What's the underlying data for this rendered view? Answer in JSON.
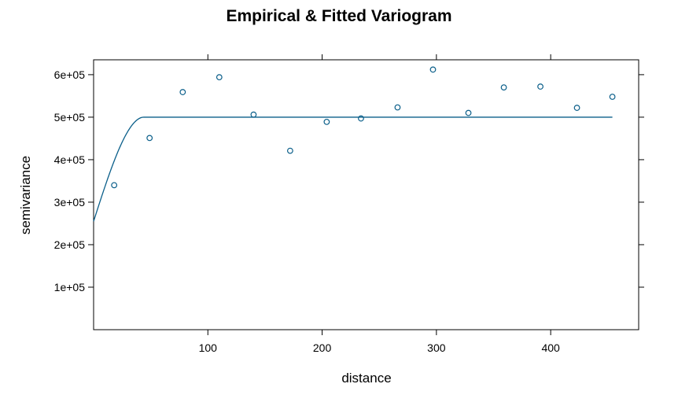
{
  "colors": {
    "series": "#0b5f8a"
  },
  "chart_data": {
    "type": "scatter",
    "title": "Empirical & Fitted Variogram",
    "xlabel": "distance",
    "ylabel": "semivariance",
    "xlim": [
      0,
      477
    ],
    "ylim": [
      0,
      635000
    ],
    "xticks": [
      {
        "value": 100,
        "label": "100"
      },
      {
        "value": 200,
        "label": "200"
      },
      {
        "value": 300,
        "label": "300"
      },
      {
        "value": 400,
        "label": "400"
      }
    ],
    "yticks": [
      {
        "value": 100000,
        "label": "1e+05"
      },
      {
        "value": 200000,
        "label": "2e+05"
      },
      {
        "value": 300000,
        "label": "3e+05"
      },
      {
        "value": 400000,
        "label": "4e+05"
      },
      {
        "value": 500000,
        "label": "5e+05"
      },
      {
        "value": 600000,
        "label": "6e+05"
      }
    ],
    "points": [
      {
        "x": 18,
        "y": 340000
      },
      {
        "x": 49,
        "y": 451000
      },
      {
        "x": 78,
        "y": 559000
      },
      {
        "x": 110,
        "y": 594000
      },
      {
        "x": 140,
        "y": 506000
      },
      {
        "x": 172,
        "y": 421000
      },
      {
        "x": 204,
        "y": 489000
      },
      {
        "x": 234,
        "y": 497000
      },
      {
        "x": 266,
        "y": 523000
      },
      {
        "x": 297,
        "y": 612000
      },
      {
        "x": 328,
        "y": 510000
      },
      {
        "x": 359,
        "y": 570000
      },
      {
        "x": 391,
        "y": 572000
      },
      {
        "x": 423,
        "y": 522000
      },
      {
        "x": 454,
        "y": 548000
      }
    ],
    "fitted_model": {
      "type": "spherical",
      "nugget": 255000,
      "sill": 500000,
      "range": 44,
      "x_end": 454
    },
    "grid": false,
    "legend": "none"
  }
}
